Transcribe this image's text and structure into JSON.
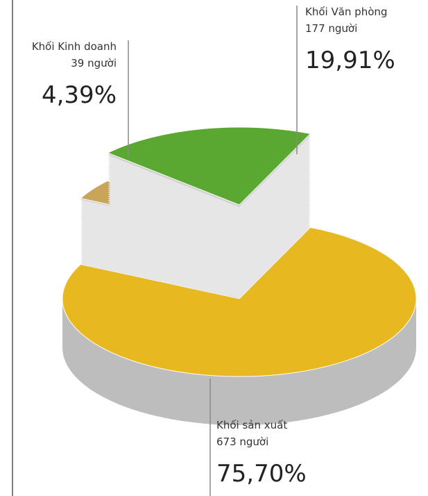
{
  "chart_data": {
    "type": "pie",
    "categories": [
      "Khối Kinh doanh",
      "Khối Văn phòng",
      "Khối sản xuất"
    ],
    "counts": [
      "39 người",
      "177 người",
      "673 người"
    ],
    "values": [
      4.39,
      19.91,
      75.7
    ],
    "value_labels": [
      "4,39%",
      "19,91%",
      "75,70%"
    ],
    "colors": [
      "#c9a55a",
      "#5aa832",
      "#e8b820"
    ]
  }
}
